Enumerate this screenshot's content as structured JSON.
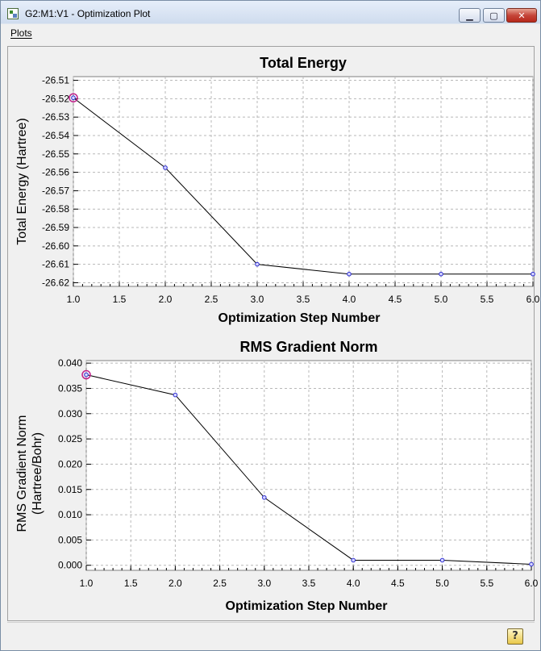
{
  "window": {
    "title": "G2:M1:V1 - Optimization Plot",
    "minimize_glyph": "▁",
    "maximize_glyph": "▢",
    "close_glyph": "✕"
  },
  "menu": {
    "plots_label": "Plots"
  },
  "help": {
    "label": "?"
  },
  "chart_data": [
    {
      "type": "line",
      "title": "Total Energy",
      "xlabel": "Optimization Step Number",
      "ylabel": "Total Energy (Hartree)",
      "x": [
        1,
        2,
        3,
        4,
        5,
        6
      ],
      "values": [
        -26.5195,
        -26.5575,
        -26.61,
        -26.6153,
        -26.6153,
        -26.6153
      ],
      "xlim": [
        1.0,
        6.0
      ],
      "ylim": [
        -26.622,
        -26.508
      ],
      "xticks": [
        "1.0",
        "1.5",
        "2.0",
        "2.5",
        "3.0",
        "3.5",
        "4.0",
        "4.5",
        "5.0",
        "5.5",
        "6.0"
      ],
      "yticks": [
        "-26.51",
        "-26.52",
        "-26.53",
        "-26.54",
        "-26.55",
        "-26.56",
        "-26.57",
        "-26.58",
        "-26.59",
        "-26.60",
        "-26.61",
        "-26.62"
      ],
      "ytick_values": [
        -26.51,
        -26.52,
        -26.53,
        -26.54,
        -26.55,
        -26.56,
        -26.57,
        -26.58,
        -26.59,
        -26.6,
        -26.61,
        -26.62
      ],
      "grid": true,
      "line_color": "#000000",
      "marker_color": "#2a2ad0",
      "highlight_color": "#c0208a",
      "highlight_index": 0
    },
    {
      "type": "line",
      "title": "RMS Gradient Norm",
      "xlabel": "Optimization Step Number",
      "ylabel": "RMS Gradient Norm",
      "ylabel2": "(Hartree/Bohr)",
      "x": [
        1,
        2,
        3,
        4,
        5,
        6
      ],
      "values": [
        0.0377,
        0.0337,
        0.0134,
        0.001,
        0.001,
        0.0002
      ],
      "xlim": [
        1.0,
        6.0
      ],
      "ylim": [
        -0.001,
        0.0405
      ],
      "xticks": [
        "1.0",
        "1.5",
        "2.0",
        "2.5",
        "3.0",
        "3.5",
        "4.0",
        "4.5",
        "5.0",
        "5.5",
        "6.0"
      ],
      "yticks": [
        "0.040",
        "0.035",
        "0.030",
        "0.025",
        "0.020",
        "0.015",
        "0.010",
        "0.005",
        "0.000"
      ],
      "ytick_values": [
        0.04,
        0.035,
        0.03,
        0.025,
        0.02,
        0.015,
        0.01,
        0.005,
        0.0
      ],
      "grid": true,
      "line_color": "#000000",
      "marker_color": "#2a2ad0",
      "highlight_color": "#c0208a",
      "highlight_index": 0
    }
  ]
}
